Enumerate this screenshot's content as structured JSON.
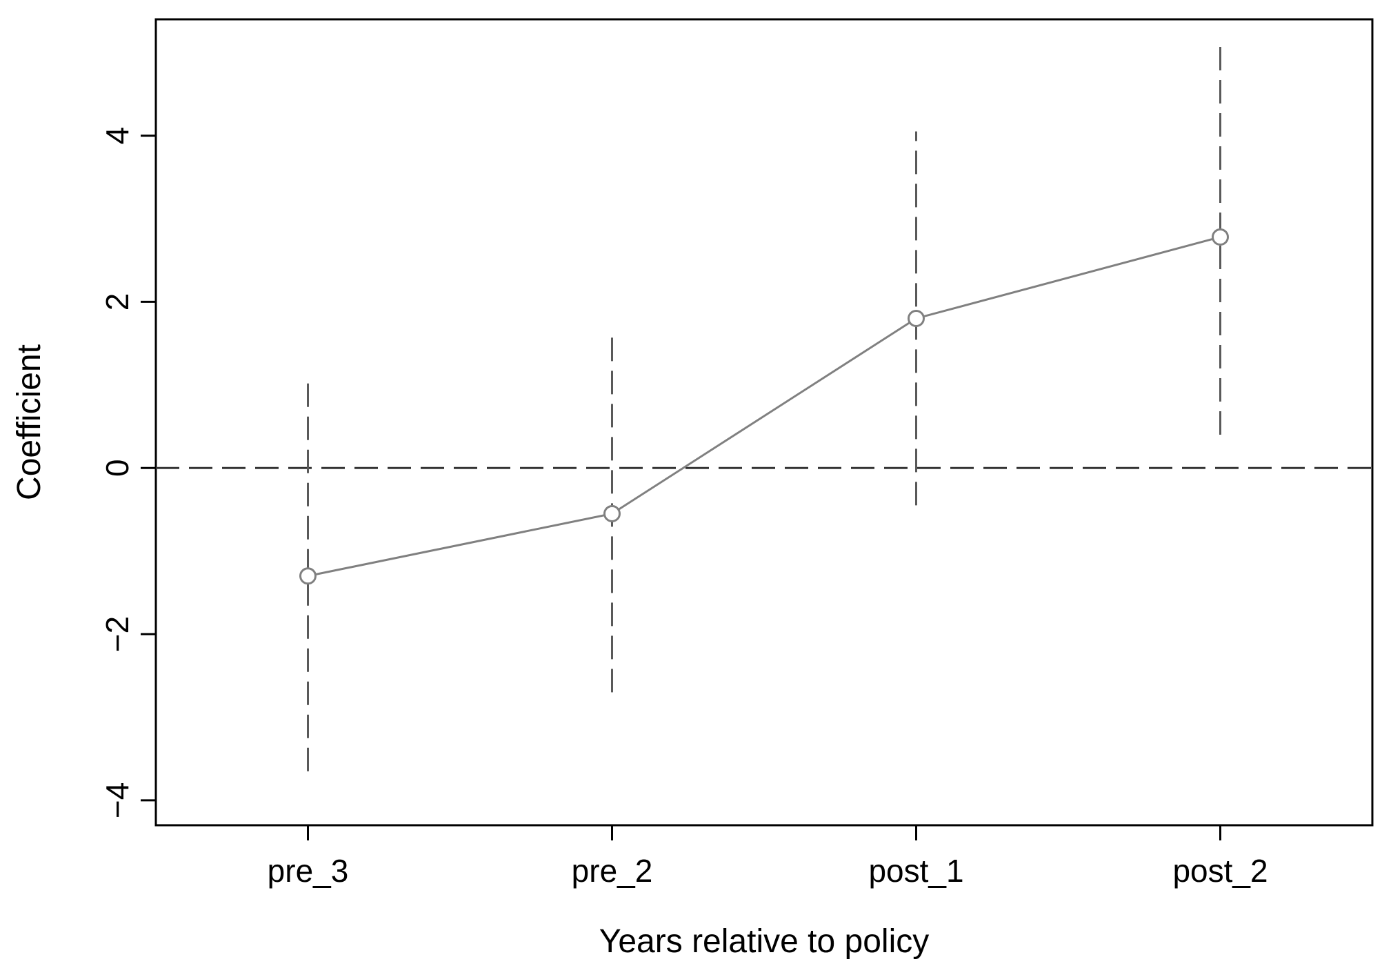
{
  "chart_data": {
    "type": "line",
    "title": "",
    "xlabel": "Years relative to policy",
    "ylabel": "Coefficient",
    "categories": [
      "pre_3",
      "pre_2",
      "post_1",
      "post_2"
    ],
    "xlim": [
      -0.5,
      3.5
    ],
    "ylim": [
      -4.3,
      5.4
    ],
    "yticks": [
      -4,
      -2,
      0,
      2,
      4
    ],
    "ytick_labels": [
      "−4",
      "−2",
      "0",
      "2",
      "4"
    ],
    "reference_line": {
      "y": 0,
      "style": "dashed"
    },
    "series": [
      {
        "values": [
          -1.3,
          -0.55,
          1.8,
          2.78
        ],
        "ci_lower": [
          -3.65,
          -2.7,
          -0.45,
          0.4
        ],
        "ci_upper": [
          1.02,
          1.62,
          4.05,
          5.18
        ],
        "marker": "hollow-circle"
      }
    ],
    "grid": false,
    "legend": "none",
    "colors": {
      "line": "#808080",
      "ci": "#595959",
      "reference": "#333333",
      "axes": "#000000"
    }
  }
}
